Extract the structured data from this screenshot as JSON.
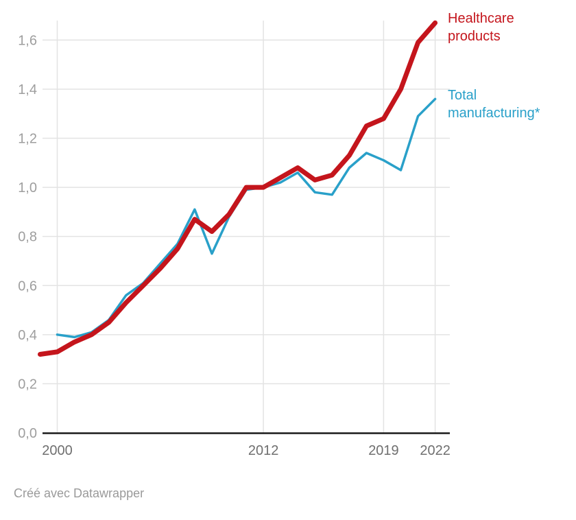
{
  "legend": {
    "healthcare": {
      "label": "Healthcare products",
      "color": "#c4151c"
    },
    "total": {
      "label": "Total manufacturing*",
      "color": "#29a0c9"
    }
  },
  "footer": {
    "text": "Créé avec Datawrapper"
  },
  "axis_colors": {
    "gridline": "#e3e3e3",
    "baseline": "#1a1a1a",
    "y_label": "#9e9e9e",
    "x_label": "#6f6f6f"
  },
  "chart_data": {
    "type": "line",
    "title": "",
    "xlabel": "",
    "ylabel": "",
    "grid": true,
    "decimal_separator": ",",
    "x_range": [
      1999,
      2022
    ],
    "y_range": [
      0,
      1.675
    ],
    "x_tick_values": [
      2000,
      2012,
      2019,
      2022
    ],
    "x_tick_labels": [
      "2000",
      "2012",
      "2019",
      "2022"
    ],
    "y_tick_values": [
      0,
      0.2,
      0.4,
      0.6,
      0.8,
      1.0,
      1.2,
      1.4,
      1.6
    ],
    "y_tick_labels": [
      "0,0",
      "0,2",
      "0,4",
      "0,6",
      "0,8",
      "1,0",
      "1,2",
      "1,4",
      "1,6"
    ],
    "legend_position": "right-of-line-ends",
    "series": [
      {
        "name": "Total manufacturing*",
        "color": "#29a0c9",
        "stroke_width": 3.5,
        "x": [
          2000,
          2001,
          2002,
          2003,
          2004,
          2005,
          2006,
          2007,
          2008,
          2009,
          2010,
          2011,
          2012,
          2013,
          2014,
          2015,
          2016,
          2017,
          2018,
          2019,
          2020,
          2021,
          2022
        ],
        "values": [
          0.4,
          0.39,
          0.41,
          0.46,
          0.56,
          0.61,
          0.69,
          0.77,
          0.91,
          0.73,
          0.88,
          0.99,
          1.0,
          1.02,
          1.06,
          0.98,
          0.97,
          1.08,
          1.14,
          1.11,
          1.07,
          1.29,
          1.36
        ]
      },
      {
        "name": "Healthcare products",
        "color": "#c4151c",
        "stroke_width": 7,
        "x": [
          1999,
          2000,
          2001,
          2002,
          2003,
          2004,
          2005,
          2006,
          2007,
          2008,
          2009,
          2010,
          2011,
          2012,
          2013,
          2014,
          2015,
          2016,
          2017,
          2018,
          2019,
          2020,
          2021,
          2022
        ],
        "values": [
          0.32,
          0.33,
          0.37,
          0.4,
          0.45,
          0.53,
          0.6,
          0.67,
          0.75,
          0.87,
          0.82,
          0.89,
          1.0,
          1.0,
          1.04,
          1.08,
          1.03,
          1.05,
          1.13,
          1.25,
          1.28,
          1.4,
          1.59,
          1.67
        ]
      }
    ]
  }
}
